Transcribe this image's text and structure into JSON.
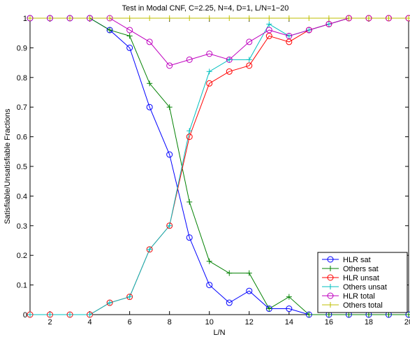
{
  "chart_data": {
    "type": "line",
    "title": "Test in Modal CNF, C=2.25, N=4, D=1, L/N=1−20",
    "xlabel": "L/N",
    "ylabel": "Satisfiable/Unsatisfiable Fractions",
    "xlim": [
      1,
      20
    ],
    "ylim": [
      0,
      1
    ],
    "xticks": [
      2,
      4,
      6,
      8,
      10,
      12,
      14,
      16,
      18,
      20
    ],
    "yticks": [
      0,
      0.1,
      0.2,
      0.3,
      0.4,
      0.5,
      0.6,
      0.7,
      0.8,
      0.9,
      1
    ],
    "ytick_labels": [
      "0",
      "0.1",
      "0.2",
      "0.3",
      "0.4",
      "0.5",
      "0.6",
      "0.7",
      "0.8",
      "0.9",
      "1"
    ],
    "grid": false,
    "legend_position": "bottom-right",
    "x": [
      1,
      2,
      3,
      4,
      5,
      6,
      7,
      8,
      9,
      10,
      11,
      12,
      13,
      14,
      15,
      16,
      17,
      18,
      19,
      20
    ],
    "series": [
      {
        "name": "HLR sat",
        "color": "#0000ff",
        "marker": "circle",
        "values": [
          1,
          1,
          1,
          1,
          0.96,
          0.9,
          0.7,
          0.54,
          0.26,
          0.1,
          0.04,
          0.08,
          0.02,
          0.02,
          0,
          0,
          0,
          0,
          0,
          0
        ]
      },
      {
        "name": "Others sat",
        "color": "#008000",
        "marker": "plus",
        "values": [
          1,
          1,
          1,
          1,
          0.96,
          0.94,
          0.78,
          0.7,
          0.38,
          0.18,
          0.14,
          0.14,
          0.02,
          0.06,
          0,
          0,
          0,
          0,
          0,
          0
        ]
      },
      {
        "name": "HLR unsat",
        "color": "#ff0000",
        "marker": "circle",
        "values": [
          0,
          0,
          0,
          0,
          0.04,
          0.06,
          0.22,
          0.3,
          0.6,
          0.78,
          0.82,
          0.84,
          0.94,
          0.92,
          0.96,
          0.98,
          1,
          1,
          1,
          1
        ]
      },
      {
        "name": "Others unsat",
        "color": "#00bfbf",
        "marker": "plus",
        "values": [
          0,
          0,
          0,
          0,
          0.04,
          0.06,
          0.22,
          0.3,
          0.62,
          0.82,
          0.86,
          0.86,
          0.98,
          0.94,
          0.96,
          0.98,
          1,
          1,
          1,
          1
        ]
      },
      {
        "name": "HLR total",
        "color": "#bf00bf",
        "marker": "circle",
        "values": [
          1,
          1,
          1,
          1,
          1,
          0.96,
          0.92,
          0.84,
          0.86,
          0.88,
          0.86,
          0.92,
          0.96,
          0.94,
          0.96,
          0.98,
          1,
          1,
          1,
          1
        ]
      },
      {
        "name": "Others total",
        "color": "#bfbf00",
        "marker": "plus",
        "values": [
          1,
          1,
          1,
          1,
          1,
          1,
          1,
          1,
          1,
          1,
          1,
          1,
          1,
          1,
          1,
          1,
          1,
          1,
          1,
          1
        ]
      }
    ]
  }
}
